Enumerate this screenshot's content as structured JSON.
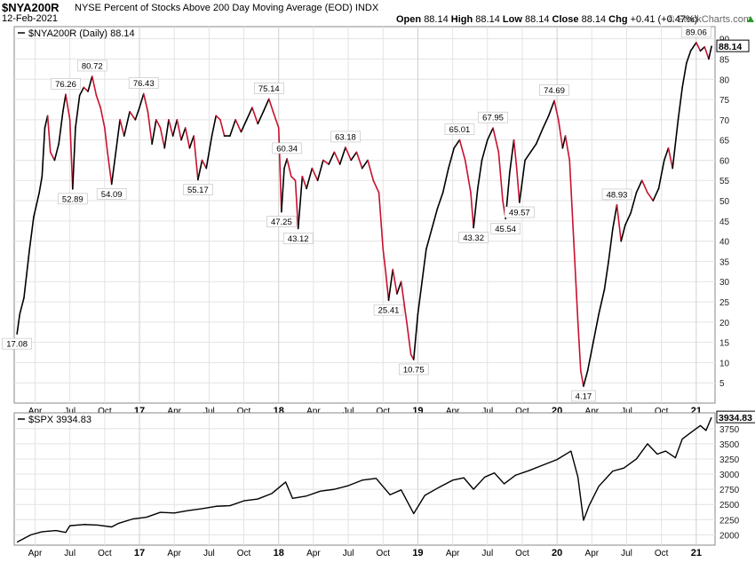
{
  "header": {
    "symbol": "$NYA200R",
    "description": "NYSE Percent of Stocks Above 200 Day Moving Average (EOD)",
    "exchange": "INDX",
    "date": "12-Feb-2021",
    "watermark": "© StockCharts.com",
    "open_label": "Open",
    "open": "88.14",
    "high_label": "High",
    "high": "88.14",
    "low_label": "Low",
    "low": "88.14",
    "close_label": "Close",
    "close": "88.14",
    "chg_label": "Chg",
    "chg": "+0.41 (+0.47%)",
    "chg_icon": "up-triangle-icon"
  },
  "chart_data": [
    {
      "type": "line",
      "legend": "$NYA200R (Daily) 88.14",
      "last_value": 88.14,
      "ylim": [
        0,
        93
      ],
      "y_ticks": [
        5,
        10,
        15,
        20,
        25,
        30,
        35,
        40,
        45,
        50,
        55,
        60,
        65,
        70,
        75,
        80,
        85,
        90
      ],
      "colors": {
        "up": "#000000",
        "down": "#c8102e",
        "grid": "#e3e3e3"
      },
      "points": [
        [
          2016.12,
          17.08
        ],
        [
          2016.14,
          22
        ],
        [
          2016.17,
          26
        ],
        [
          2016.21,
          38
        ],
        [
          2016.24,
          46
        ],
        [
          2016.28,
          52
        ],
        [
          2016.3,
          56
        ],
        [
          2016.32,
          68
        ],
        [
          2016.34,
          71
        ],
        [
          2016.36,
          62
        ],
        [
          2016.39,
          60
        ],
        [
          2016.42,
          64
        ],
        [
          2016.45,
          72
        ],
        [
          2016.47,
          76.26
        ],
        [
          2016.5,
          70
        ],
        [
          2016.52,
          52.89
        ],
        [
          2016.54,
          68
        ],
        [
          2016.57,
          76
        ],
        [
          2016.6,
          78
        ],
        [
          2016.63,
          77
        ],
        [
          2016.66,
          80.72
        ],
        [
          2016.69,
          76
        ],
        [
          2016.72,
          73
        ],
        [
          2016.75,
          68
        ],
        [
          2016.77,
          62
        ],
        [
          2016.8,
          54.09
        ],
        [
          2016.83,
          62
        ],
        [
          2016.86,
          70
        ],
        [
          2016.89,
          66
        ],
        [
          2016.93,
          72
        ],
        [
          2016.97,
          70
        ],
        [
          2017.0,
          73
        ],
        [
          2017.03,
          76.43
        ],
        [
          2017.06,
          72
        ],
        [
          2017.09,
          64
        ],
        [
          2017.12,
          70
        ],
        [
          2017.15,
          68
        ],
        [
          2017.18,
          63
        ],
        [
          2017.21,
          70
        ],
        [
          2017.24,
          66
        ],
        [
          2017.27,
          70
        ],
        [
          2017.3,
          65
        ],
        [
          2017.33,
          68
        ],
        [
          2017.36,
          63
        ],
        [
          2017.39,
          66
        ],
        [
          2017.42,
          55.17
        ],
        [
          2017.45,
          60
        ],
        [
          2017.48,
          58
        ],
        [
          2017.52,
          66
        ],
        [
          2017.55,
          71
        ],
        [
          2017.58,
          70
        ],
        [
          2017.61,
          66
        ],
        [
          2017.65,
          66
        ],
        [
          2017.69,
          70
        ],
        [
          2017.73,
          67
        ],
        [
          2017.77,
          70
        ],
        [
          2017.81,
          73
        ],
        [
          2017.85,
          69
        ],
        [
          2017.89,
          72
        ],
        [
          2017.93,
          75.14
        ],
        [
          2017.96,
          72
        ],
        [
          2018.0,
          68
        ],
        [
          2018.02,
          47.25
        ],
        [
          2018.04,
          58
        ],
        [
          2018.06,
          60.34
        ],
        [
          2018.09,
          56
        ],
        [
          2018.12,
          55
        ],
        [
          2018.14,
          43.12
        ],
        [
          2018.17,
          56
        ],
        [
          2018.2,
          53
        ],
        [
          2018.24,
          58
        ],
        [
          2018.28,
          55
        ],
        [
          2018.32,
          60
        ],
        [
          2018.36,
          59
        ],
        [
          2018.4,
          62
        ],
        [
          2018.44,
          59
        ],
        [
          2018.48,
          63.18
        ],
        [
          2018.52,
          60
        ],
        [
          2018.56,
          62
        ],
        [
          2018.6,
          58
        ],
        [
          2018.64,
          60
        ],
        [
          2018.68,
          55
        ],
        [
          2018.72,
          52
        ],
        [
          2018.75,
          38
        ],
        [
          2018.77,
          32
        ],
        [
          2018.79,
          25.41
        ],
        [
          2018.82,
          33
        ],
        [
          2018.85,
          27
        ],
        [
          2018.88,
          30
        ],
        [
          2018.92,
          20
        ],
        [
          2018.95,
          12
        ],
        [
          2018.97,
          10.75
        ],
        [
          2019.0,
          22
        ],
        [
          2019.03,
          30
        ],
        [
          2019.06,
          38
        ],
        [
          2019.1,
          43
        ],
        [
          2019.14,
          48
        ],
        [
          2019.18,
          52
        ],
        [
          2019.22,
          58
        ],
        [
          2019.26,
          63
        ],
        [
          2019.3,
          65.01
        ],
        [
          2019.34,
          60
        ],
        [
          2019.38,
          52
        ],
        [
          2019.4,
          43.32
        ],
        [
          2019.43,
          53
        ],
        [
          2019.46,
          60
        ],
        [
          2019.5,
          65
        ],
        [
          2019.54,
          67.95
        ],
        [
          2019.58,
          62
        ],
        [
          2019.61,
          50
        ],
        [
          2019.63,
          45.54
        ],
        [
          2019.66,
          57
        ],
        [
          2019.69,
          65
        ],
        [
          2019.71,
          58
        ],
        [
          2019.73,
          49.57
        ],
        [
          2019.77,
          60
        ],
        [
          2019.81,
          62
        ],
        [
          2019.85,
          64
        ],
        [
          2019.9,
          68
        ],
        [
          2019.94,
          71
        ],
        [
          2019.98,
          74.69
        ],
        [
          2020.01,
          70
        ],
        [
          2020.04,
          63
        ],
        [
          2020.06,
          66
        ],
        [
          2020.09,
          60
        ],
        [
          2020.12,
          40
        ],
        [
          2020.15,
          20
        ],
        [
          2020.17,
          8
        ],
        [
          2020.19,
          4.17
        ],
        [
          2020.22,
          8
        ],
        [
          2020.26,
          15
        ],
        [
          2020.3,
          22
        ],
        [
          2020.34,
          28
        ],
        [
          2020.37,
          35
        ],
        [
          2020.4,
          43
        ],
        [
          2020.43,
          48.93
        ],
        [
          2020.46,
          40
        ],
        [
          2020.49,
          44
        ],
        [
          2020.53,
          47
        ],
        [
          2020.57,
          52
        ],
        [
          2020.61,
          55
        ],
        [
          2020.65,
          52
        ],
        [
          2020.69,
          50
        ],
        [
          2020.73,
          53
        ],
        [
          2020.77,
          60
        ],
        [
          2020.8,
          63
        ],
        [
          2020.83,
          58
        ],
        [
          2020.87,
          70
        ],
        [
          2020.9,
          78
        ],
        [
          2020.93,
          84
        ],
        [
          2020.96,
          87
        ],
        [
          2021.0,
          89.06
        ],
        [
          2021.03,
          87
        ],
        [
          2021.06,
          88
        ],
        [
          2021.09,
          85
        ],
        [
          2021.11,
          88.14
        ]
      ],
      "annotations": [
        {
          "label": "17.08",
          "x": 2016.12,
          "y": 17.08,
          "pos": "below"
        },
        {
          "label": "76.26",
          "x": 2016.47,
          "y": 76.26,
          "pos": "above"
        },
        {
          "label": "52.89",
          "x": 2016.52,
          "y": 52.89,
          "pos": "below"
        },
        {
          "label": "80.72",
          "x": 2016.66,
          "y": 80.72,
          "pos": "above"
        },
        {
          "label": "54.09",
          "x": 2016.8,
          "y": 54.09,
          "pos": "below"
        },
        {
          "label": "76.43",
          "x": 2017.03,
          "y": 76.43,
          "pos": "above"
        },
        {
          "label": "55.17",
          "x": 2017.42,
          "y": 55.17,
          "pos": "below"
        },
        {
          "label": "75.14",
          "x": 2017.93,
          "y": 75.14,
          "pos": "above"
        },
        {
          "label": "60.34",
          "x": 2018.06,
          "y": 60.34,
          "pos": "above"
        },
        {
          "label": "47.25",
          "x": 2018.02,
          "y": 47.25,
          "pos": "below"
        },
        {
          "label": "43.12",
          "x": 2018.14,
          "y": 43.12,
          "pos": "below"
        },
        {
          "label": "63.18",
          "x": 2018.48,
          "y": 63.18,
          "pos": "above"
        },
        {
          "label": "25.41",
          "x": 2018.79,
          "y": 25.41,
          "pos": "below"
        },
        {
          "label": "10.75",
          "x": 2018.97,
          "y": 10.75,
          "pos": "below"
        },
        {
          "label": "65.01",
          "x": 2019.3,
          "y": 65.01,
          "pos": "above"
        },
        {
          "label": "43.32",
          "x": 2019.4,
          "y": 43.32,
          "pos": "below"
        },
        {
          "label": "67.95",
          "x": 2019.54,
          "y": 67.95,
          "pos": "above"
        },
        {
          "label": "45.54",
          "x": 2019.63,
          "y": 45.54,
          "pos": "below"
        },
        {
          "label": "49.57",
          "x": 2019.73,
          "y": 49.57,
          "pos": "below"
        },
        {
          "label": "74.69",
          "x": 2019.98,
          "y": 74.69,
          "pos": "above"
        },
        {
          "label": "4.17",
          "x": 2020.19,
          "y": 4.17,
          "pos": "below"
        },
        {
          "label": "48.93",
          "x": 2020.43,
          "y": 48.93,
          "pos": "above"
        },
        {
          "label": "89.06",
          "x": 2021.0,
          "y": 89.06,
          "pos": "above"
        }
      ]
    },
    {
      "type": "line",
      "legend": "$SPX 3934.83",
      "last_value": 3934.83,
      "ylim": [
        1830,
        4010
      ],
      "y_ticks": [
        2000,
        2250,
        2500,
        2750,
        3000,
        3250,
        3500,
        3750
      ],
      "colors": {
        "line": "#000000",
        "grid": "#e3e3e3"
      },
      "points": [
        [
          2016.12,
          1880
        ],
        [
          2016.17,
          1940
        ],
        [
          2016.22,
          2000
        ],
        [
          2016.3,
          2050
        ],
        [
          2016.4,
          2070
        ],
        [
          2016.47,
          2040
        ],
        [
          2016.5,
          2150
        ],
        [
          2016.6,
          2170
        ],
        [
          2016.7,
          2160
        ],
        [
          2016.8,
          2130
        ],
        [
          2016.85,
          2190
        ],
        [
          2016.95,
          2260
        ],
        [
          2017.05,
          2290
        ],
        [
          2017.15,
          2370
        ],
        [
          2017.25,
          2360
        ],
        [
          2017.35,
          2400
        ],
        [
          2017.45,
          2430
        ],
        [
          2017.55,
          2470
        ],
        [
          2017.65,
          2480
        ],
        [
          2017.75,
          2560
        ],
        [
          2017.85,
          2590
        ],
        [
          2017.95,
          2680
        ],
        [
          2018.05,
          2870
        ],
        [
          2018.1,
          2600
        ],
        [
          2018.2,
          2640
        ],
        [
          2018.3,
          2720
        ],
        [
          2018.4,
          2750
        ],
        [
          2018.5,
          2810
        ],
        [
          2018.6,
          2900
        ],
        [
          2018.7,
          2930
        ],
        [
          2018.8,
          2660
        ],
        [
          2018.88,
          2740
        ],
        [
          2018.97,
          2350
        ],
        [
          2019.05,
          2650
        ],
        [
          2019.15,
          2780
        ],
        [
          2019.25,
          2900
        ],
        [
          2019.33,
          2940
        ],
        [
          2019.4,
          2750
        ],
        [
          2019.48,
          2950
        ],
        [
          2019.55,
          3020
        ],
        [
          2019.62,
          2840
        ],
        [
          2019.7,
          2980
        ],
        [
          2019.8,
          3060
        ],
        [
          2019.9,
          3150
        ],
        [
          2020.0,
          3240
        ],
        [
          2020.1,
          3380
        ],
        [
          2020.15,
          2950
        ],
        [
          2020.19,
          2240
        ],
        [
          2020.23,
          2480
        ],
        [
          2020.3,
          2800
        ],
        [
          2020.4,
          3050
        ],
        [
          2020.48,
          3100
        ],
        [
          2020.57,
          3250
        ],
        [
          2020.65,
          3500
        ],
        [
          2020.72,
          3330
        ],
        [
          2020.78,
          3380
        ],
        [
          2020.85,
          3270
        ],
        [
          2020.9,
          3580
        ],
        [
          2020.97,
          3700
        ],
        [
          2021.03,
          3800
        ],
        [
          2021.07,
          3720
        ],
        [
          2021.11,
          3934.83
        ]
      ]
    }
  ],
  "x_axis": {
    "labels": [
      {
        "text": "Apr",
        "x": 2016.25,
        "year": false
      },
      {
        "text": "Jul",
        "x": 2016.5,
        "year": false
      },
      {
        "text": "Oct",
        "x": 2016.75,
        "year": false
      },
      {
        "text": "17",
        "x": 2017.0,
        "year": true
      },
      {
        "text": "Apr",
        "x": 2017.25,
        "year": false
      },
      {
        "text": "Jul",
        "x": 2017.5,
        "year": false
      },
      {
        "text": "Oct",
        "x": 2017.75,
        "year": false
      },
      {
        "text": "18",
        "x": 2018.0,
        "year": true
      },
      {
        "text": "Apr",
        "x": 2018.25,
        "year": false
      },
      {
        "text": "Jul",
        "x": 2018.5,
        "year": false
      },
      {
        "text": "Oct",
        "x": 2018.75,
        "year": false
      },
      {
        "text": "19",
        "x": 2019.0,
        "year": true
      },
      {
        "text": "Apr",
        "x": 2019.25,
        "year": false
      },
      {
        "text": "Jul",
        "x": 2019.5,
        "year": false
      },
      {
        "text": "Oct",
        "x": 2019.75,
        "year": false
      },
      {
        "text": "20",
        "x": 2020.0,
        "year": true
      },
      {
        "text": "Apr",
        "x": 2020.25,
        "year": false
      },
      {
        "text": "Jul",
        "x": 2020.5,
        "year": false
      },
      {
        "text": "Oct",
        "x": 2020.75,
        "year": false
      },
      {
        "text": "21",
        "x": 2021.0,
        "year": true
      }
    ],
    "range": [
      2016.1,
      2021.135
    ]
  }
}
